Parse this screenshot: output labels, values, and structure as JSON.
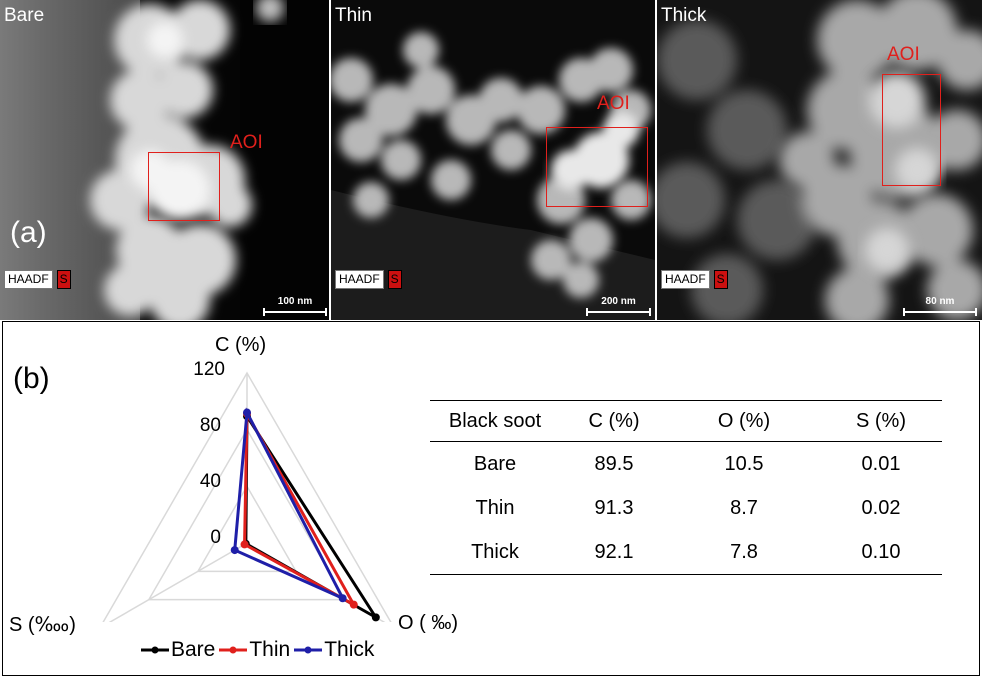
{
  "panel_a": {
    "label": "(a)",
    "images": [
      {
        "title": "Bare",
        "aoi_label": "AOI",
        "detector": "HAADF",
        "element_tag": "S",
        "scale": "100 nm"
      },
      {
        "title": "Thin",
        "aoi_label": "AOI",
        "detector": "HAADF",
        "element_tag": "S",
        "scale": "200 nm"
      },
      {
        "title": "Thick",
        "aoi_label": "AOI",
        "detector": "HAADF",
        "element_tag": "S",
        "scale": "80 nm"
      }
    ]
  },
  "panel_b": {
    "label": "(b)",
    "radar": {
      "axes": [
        "C (%)",
        "O ( ‰)",
        "S (‱)"
      ],
      "ticks": [
        "120",
        "80",
        "40",
        "0"
      ],
      "legend": [
        "Bare",
        "Thin",
        "Thick"
      ]
    },
    "table": {
      "headers": [
        "Black soot",
        "C (%)",
        "O (%)",
        "S (%)"
      ],
      "rows": [
        [
          "Bare",
          "89.5",
          "10.5",
          "0.01"
        ],
        [
          "Thin",
          "91.3",
          "8.7",
          "0.02"
        ],
        [
          "Thick",
          "92.1",
          "7.8",
          "0.10"
        ]
      ]
    }
  },
  "chart_data": {
    "type": "radar",
    "axes": [
      "C (%)",
      "O ( ‰)",
      "S (‱)"
    ],
    "range": [
      0,
      120
    ],
    "ticks": [
      0,
      40,
      80,
      120
    ],
    "legend_position": "bottom",
    "series": [
      {
        "name": "Bare",
        "color": "#000000",
        "values": [
          89.5,
          105,
          1
        ]
      },
      {
        "name": "Thin",
        "color": "#e0201c",
        "values": [
          91.3,
          87,
          2
        ]
      },
      {
        "name": "Thick",
        "color": "#1f1fa8",
        "values": [
          92.1,
          78,
          10
        ]
      }
    ]
  }
}
